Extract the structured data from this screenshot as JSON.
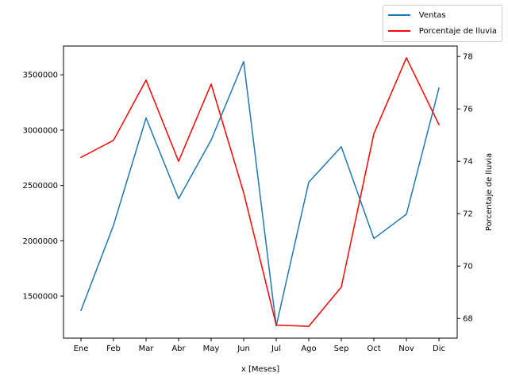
{
  "chart_data": {
    "type": "line",
    "categories": [
      "Ene",
      "Feb",
      "Mar",
      "Abr",
      "May",
      "Jun",
      "Jul",
      "Ago",
      "Sep",
      "Oct",
      "Nov",
      "Dic"
    ],
    "xlabel": "x [Meses]",
    "ylabel": "",
    "y2label": "Porcentaje de lluvia",
    "ylim": [
      1120000,
      3760000
    ],
    "y2lim": [
      67.25,
      78.4
    ],
    "yticks": [
      1500000,
      2000000,
      2500000,
      3000000,
      3500000
    ],
    "y2ticks": [
      68,
      70,
      72,
      74,
      76,
      78
    ],
    "grid": false,
    "legend_position": "top-right",
    "series": [
      {
        "name": "Ventas",
        "axis": "left",
        "color": "#1f77b4",
        "values": [
          1370000,
          2140000,
          3110000,
          2380000,
          2910000,
          3620000,
          1230000,
          2530000,
          2850000,
          2020000,
          2240000,
          3380000
        ]
      },
      {
        "name": "Porcentaje de lluvia",
        "axis": "right",
        "color": "#ff0000",
        "values": [
          74.15,
          74.8,
          77.1,
          74.0,
          76.95,
          72.8,
          67.75,
          67.7,
          69.2,
          75.05,
          77.95,
          75.4
        ]
      }
    ]
  }
}
